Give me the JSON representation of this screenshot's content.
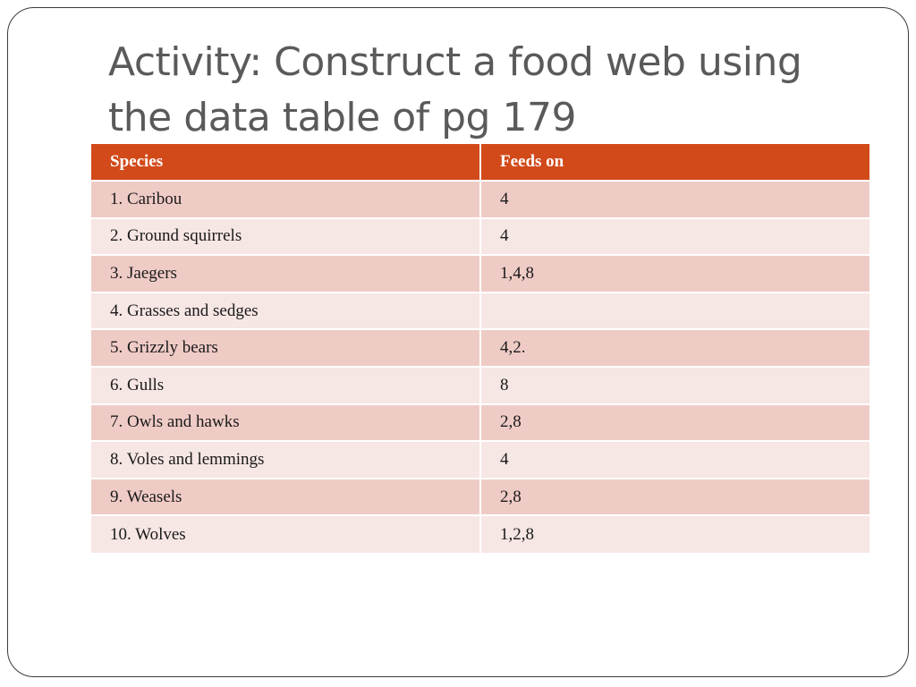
{
  "slide": {
    "title_lines": [
      "Activity:  Construct a food web using",
      "the data table of pg 179"
    ]
  },
  "table": {
    "headers": [
      "Species",
      "Feeds  on"
    ],
    "rows": [
      [
        "1.    Caribou",
        "4"
      ],
      [
        "2. Ground squirrels",
        "4"
      ],
      [
        "3. Jaegers",
        "1,4,8"
      ],
      [
        "4.  Grasses and sedges",
        ""
      ],
      [
        "5. Grizzly bears",
        "4,2."
      ],
      [
        "6. Gulls",
        "8"
      ],
      [
        "7. Owls and hawks",
        "2,8"
      ],
      [
        "8. Voles and lemmings",
        "4"
      ],
      [
        "9. Weasels",
        "2,8"
      ],
      [
        "10. Wolves",
        "1,2,8"
      ]
    ]
  },
  "colors": {
    "header_bg": "#d24a1a",
    "row_odd_bg": "#efcbc6",
    "row_even_bg": "#f6e6e4",
    "title_color": "#5a5a5a"
  }
}
